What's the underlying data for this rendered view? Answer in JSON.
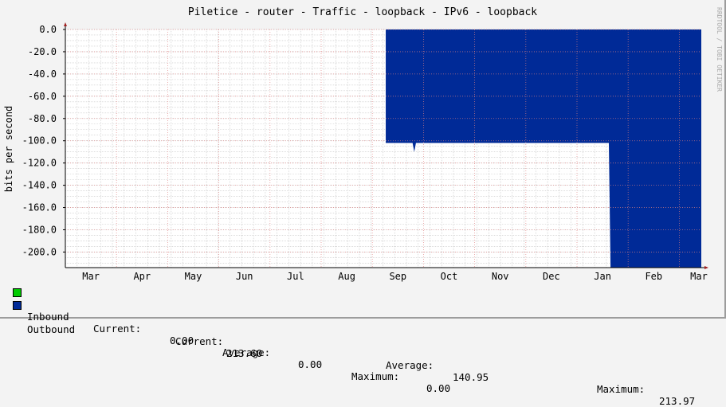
{
  "chart_data": {
    "type": "area",
    "title": "Piletice - router - Traffic - loopback - IPv6 - loopback",
    "ylabel": "bits per second",
    "watermark": "RRDTOOL / TOBI OETIKER",
    "ylim": [
      -214,
      0
    ],
    "yticks": [
      "0.0",
      "-20.0",
      "-40.0",
      "-60.0",
      "-80.0",
      "-100.0",
      "-120.0",
      "-140.0",
      "-160.0",
      "-180.0",
      "-200.0"
    ],
    "xticks": [
      "Mar",
      "Apr",
      "May",
      "Jun",
      "Jul",
      "Aug",
      "Sep",
      "Oct",
      "Nov",
      "Dec",
      "Jan",
      "Feb",
      "Mar"
    ],
    "grid": true,
    "colors": {
      "inbound": "#00cc00",
      "outbound": "#002a97",
      "major_grid": "#e08080",
      "minor_grid": "#c8c8c8"
    },
    "series": [
      {
        "name": "Inbound",
        "points": []
      },
      {
        "name": "Outbound",
        "points": [
          {
            "x": "Sep 9",
            "y": -102
          },
          {
            "x": "Sep 25",
            "y": -102
          },
          {
            "x": "Sep 26",
            "y": -110
          },
          {
            "x": "Sep 27",
            "y": -102
          },
          {
            "x": "Jan 20",
            "y": -102
          },
          {
            "x": "Jan 21",
            "y": -213.97
          },
          {
            "x": "Mar 15",
            "y": -213.6
          }
        ]
      }
    ]
  },
  "legend": [
    {
      "name": "Inbound",
      "current_label": "Current:",
      "current": "0.00",
      "average_label": "Average:",
      "average": "0.00",
      "maximum_label": "Maximum:",
      "maximum": "0.00"
    },
    {
      "name": "Outbound",
      "current_label": "Current:",
      "current": "213.60",
      "average_label": "Average:",
      "average": "140.95",
      "maximum_label": "Maximum:",
      "maximum": "213.97"
    }
  ]
}
